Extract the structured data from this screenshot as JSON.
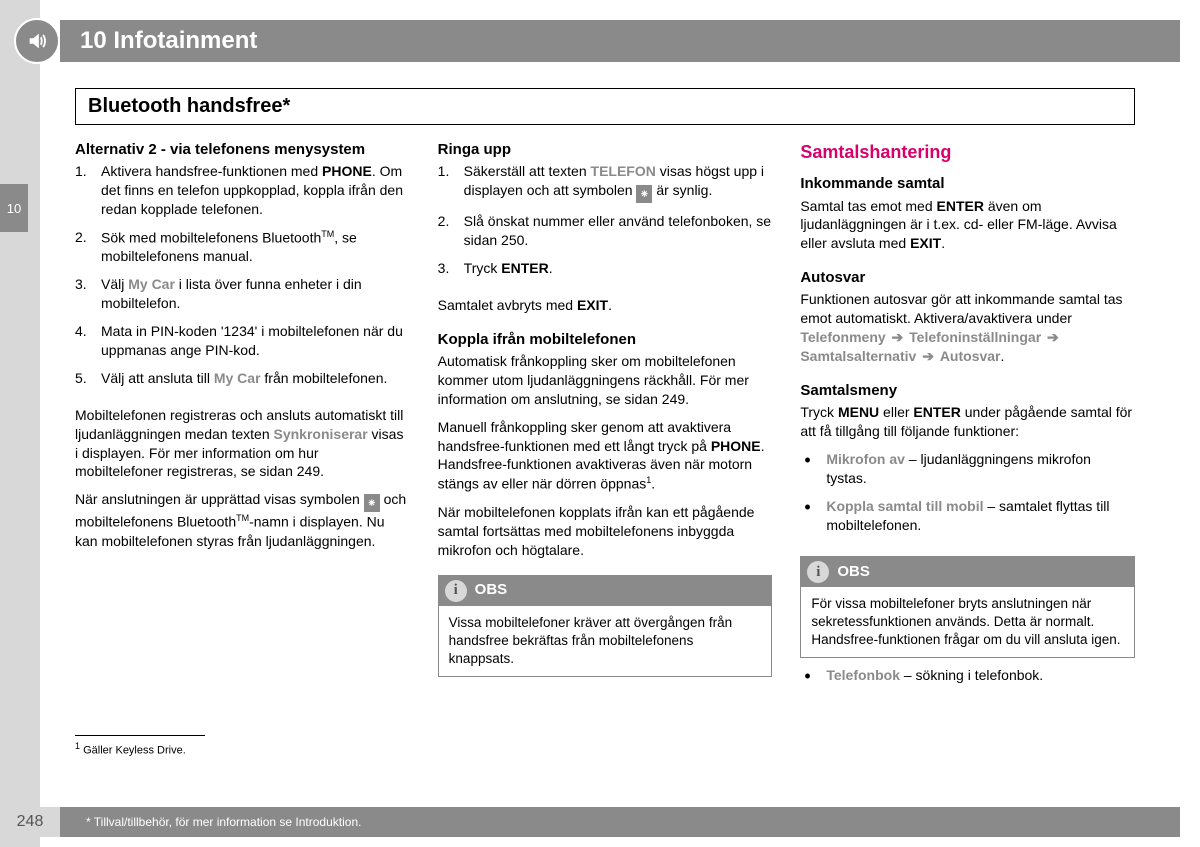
{
  "header": {
    "chapter_number": "10",
    "chapter_title": "Infotainment",
    "tab_number": "10"
  },
  "section_title": "Bluetooth handsfree*",
  "col1": {
    "h_alt2": "Alternativ 2 - via telefonens menysystem",
    "steps": [
      "Aktivera handsfree-funktionen med <b>PHONE</b>. Om det finns en telefon uppkopplad, koppla ifrån den redan kopplade telefonen.",
      "Sök med mobiltelefonens Bluetooth<sup>TM</sup>, se mobiltelefonens manual.",
      "Välj <gb>My Car</gb> i lista över funna enheter i din mobiltelefon.",
      "Mata in PIN-koden '1234' i mobiltelefonen när du uppmanas ange PIN-kod.",
      "Välj att ansluta till <gb>My Car</gb> från mobiltelefonen."
    ],
    "p1": "Mobiltelefonen registreras och ansluts automatiskt till ljudanläggningen medan texten <gb>Synkroniserar</gb> visas i displayen. För mer information om hur mobiltelefoner registreras, se sidan 249.",
    "p2": "När anslutningen är upprättad visas symbolen <bt></bt> och mobiltelefonens Bluetooth<sup>TM</sup>-namn i displayen. Nu kan mobiltelefonen styras från ljudanläggningen.",
    "footnote": "Gäller Keyless Drive."
  },
  "col2": {
    "h_ringa": "Ringa upp",
    "ringa_steps": [
      "Säkerställ att texten <gb>TELEFON</gb> visas högst upp i displayen och att symbolen <bt></bt> är synlig.",
      "Slå önskat nummer eller använd telefonboken, se sidan 250.",
      "Tryck <b>ENTER</b>."
    ],
    "p_exit": "Samtalet avbryts med <b>EXIT</b>.",
    "h_koppla": "Koppla ifrån mobiltelefonen",
    "p_koppla1": "Automatisk frånkoppling sker om mobiltelefonen kommer utom ljudanläggningens räckhåll. För mer information om anslutning, se sidan 249.",
    "p_koppla2": "Manuell frånkoppling sker genom att avaktivera handsfree-funktionen med ett långt tryck på <b>PHONE</b>. Handsfree-funktionen avaktiveras även när motorn stängs av eller när dörren öppnas<sup>1</sup>.",
    "p_koppla3": "När mobiltelefonen kopplats ifrån kan ett pågående samtal fortsättas med mobiltelefonens inbyggda mikrofon och högtalare.",
    "obs_label": "OBS",
    "obs_body": "Vissa mobiltelefoner kräver att övergången från handsfree bekräftas från mobiltelefonens knappsats."
  },
  "col3": {
    "h_section": "Samtalshantering",
    "h_ink": "Inkommande samtal",
    "p_ink": "Samtal tas emot med <b>ENTER</b> även om ljudanläggningen är i t.ex. cd- eller FM-läge. Avvisa eller avsluta med <b>EXIT</b>.",
    "h_auto": "Autosvar",
    "p_auto": "Funktionen autosvar gör att inkommande samtal tas emot automatiskt. Aktivera/avaktivera under <gb>Telefonmeny</gb> <arr></arr> <gb>Telefoninställningar</gb> <arr></arr> <gb>Samtalsalternativ</gb> <arr></arr> <gb>Autosvar</gb>.",
    "h_menu": "Samtalsmeny",
    "p_menu": "Tryck <b>MENU</b> eller <b>ENTER</b> under pågående samtal för att få tillgång till följande funktioner:",
    "bullets1": [
      "<gb>Mikrofon av</gb> – ljudanläggningens mikrofon tystas.",
      "<gb>Koppla samtal till mobil</gb> – samtalet flyttas till mobiltelefonen."
    ],
    "obs_label": "OBS",
    "obs_body": "För vissa mobiltelefoner bryts anslutningen när sekretessfunktionen används. Detta är normalt. Handsfree-funktionen frågar om du vill ansluta igen.",
    "bullets2": [
      "<gb>Telefonbok</gb> – sökning i telefonbok."
    ]
  },
  "footer": {
    "page_number": "248",
    "note": "* Tillval/tillbehör, för mer information se Introduktion."
  }
}
